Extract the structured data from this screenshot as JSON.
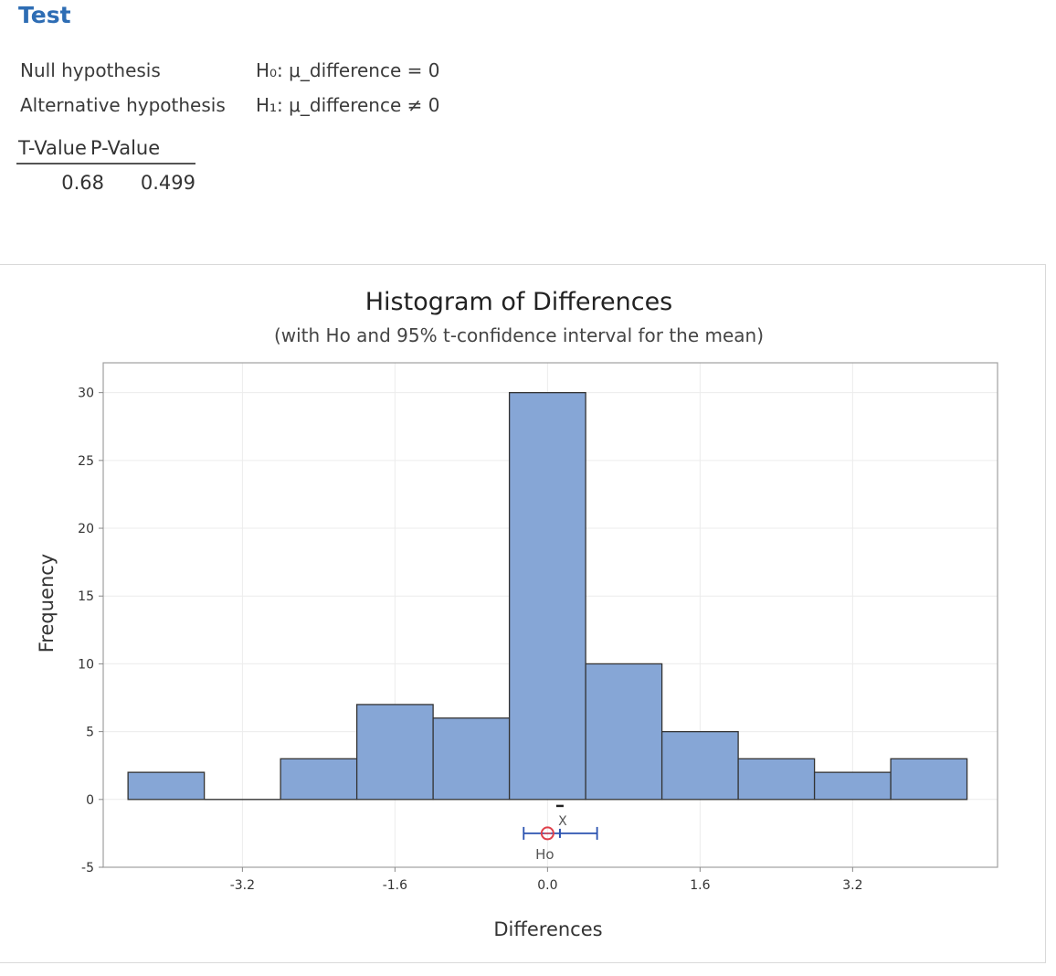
{
  "section": {
    "title": "Test"
  },
  "hypotheses": [
    {
      "label": "Null hypothesis",
      "value": "H₀: μ_difference = 0"
    },
    {
      "label": "Alternative hypothesis",
      "value": "H₁: μ_difference ≠ 0"
    }
  ],
  "stats": {
    "headers": [
      "T-Value",
      "P-Value"
    ],
    "values": [
      "0.68",
      "0.499"
    ]
  },
  "colors": {
    "accent": "#2e6db4",
    "bar": "#86a6d6",
    "bar_edge": "#333333",
    "interval": "#2a52b0",
    "ho_marker": "#e0404a"
  },
  "chart_data": {
    "type": "bar",
    "title": "Histogram of Differences",
    "subtitle": "(with Ho and 95% t-confidence interval for the mean)",
    "xlabel": "Differences",
    "ylabel": "Frequency",
    "bin_width": 0.8,
    "bin_starts": [
      -4.4,
      -3.6,
      -2.8,
      -2.0,
      -1.2,
      -0.4,
      0.4,
      1.2,
      2.0,
      2.8,
      3.6
    ],
    "values": [
      2,
      0,
      3,
      7,
      6,
      30,
      10,
      5,
      3,
      2,
      3
    ],
    "xlim": [
      -4.66,
      4.72
    ],
    "ylim": [
      -5,
      32.2
    ],
    "xticks": [
      -3.2,
      -1.6,
      0.0,
      1.6,
      3.2
    ],
    "xtick_labels": [
      "-3.2",
      "-1.6",
      "0.0",
      "1.6",
      "3.2"
    ],
    "yticks": [
      -5,
      0,
      5,
      10,
      15,
      20,
      25,
      30
    ],
    "ytick_labels": [
      "-5",
      "0",
      "5",
      "10",
      "15",
      "20",
      "25",
      "30"
    ],
    "grid": true,
    "interval": {
      "mean": 0.13,
      "lower": -0.25,
      "upper": 0.52,
      "ho": 0.0,
      "y": -2.5,
      "mean_label": "X",
      "ho_label": "Ho"
    }
  }
}
